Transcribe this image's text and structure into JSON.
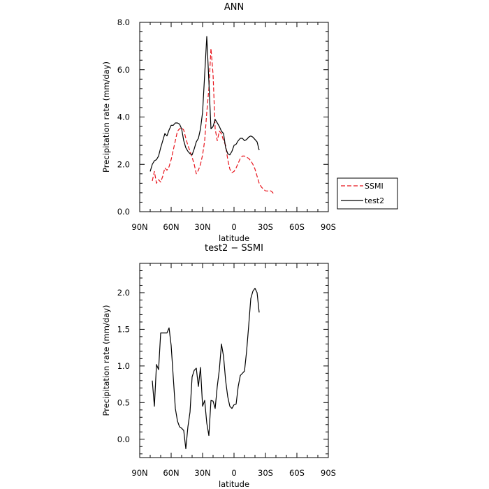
{
  "chart_data": [
    {
      "type": "line",
      "title": "ANN",
      "xlabel": "latitude",
      "ylabel": "Precipitation rate (mm/day)",
      "xlim": [
        90,
        -90
      ],
      "ylim": [
        0,
        8
      ],
      "x_ticks": [
        90,
        60,
        30,
        0,
        -30,
        -60,
        -90
      ],
      "x_tick_labels": [
        "90N",
        "60N",
        "30N",
        "0",
        "30S",
        "60S",
        "90S"
      ],
      "y_ticks": [
        0,
        2,
        4,
        6,
        8
      ],
      "y_tick_labels": [
        "0.0",
        "2.0",
        "4.0",
        "6.0",
        "8.0"
      ],
      "legend_position": "right",
      "series": [
        {
          "name": "SSMI",
          "color": "#e8141c",
          "dash": "dashed",
          "points": [
            [
              78,
              1.3
            ],
            [
              76,
              1.7
            ],
            [
              74,
              1.2
            ],
            [
              72,
              1.35
            ],
            [
              70,
              1.25
            ],
            [
              68,
              1.5
            ],
            [
              66,
              1.85
            ],
            [
              64,
              1.75
            ],
            [
              62,
              1.9
            ],
            [
              60,
              2.2
            ],
            [
              58,
              2.6
            ],
            [
              56,
              3.0
            ],
            [
              54,
              3.4
            ],
            [
              52,
              3.5
            ],
            [
              50,
              3.55
            ],
            [
              48,
              3.45
            ],
            [
              46,
              3.1
            ],
            [
              44,
              2.8
            ],
            [
              42,
              2.55
            ],
            [
              40,
              2.3
            ],
            [
              38,
              2.0
            ],
            [
              36,
              1.6
            ],
            [
              34,
              1.75
            ],
            [
              32,
              2.0
            ],
            [
              30,
              2.4
            ],
            [
              28,
              3.0
            ],
            [
              26,
              4.2
            ],
            [
              24,
              5.2
            ],
            [
              22,
              6.9
            ],
            [
              20,
              5.8
            ],
            [
              18,
              3.5
            ],
            [
              16,
              3.0
            ],
            [
              14,
              3.4
            ],
            [
              12,
              3.3
            ],
            [
              10,
              3.0
            ],
            [
              8,
              2.8
            ],
            [
              6,
              2.2
            ],
            [
              4,
              1.8
            ],
            [
              2,
              1.65
            ],
            [
              0,
              1.7
            ],
            [
              -2,
              1.85
            ],
            [
              -4,
              2.05
            ],
            [
              -6,
              2.25
            ],
            [
              -8,
              2.35
            ],
            [
              -10,
              2.35
            ],
            [
              -12,
              2.3
            ],
            [
              -14,
              2.25
            ],
            [
              -16,
              2.15
            ],
            [
              -18,
              2.0
            ],
            [
              -20,
              1.8
            ],
            [
              -22,
              1.5
            ],
            [
              -24,
              1.2
            ],
            [
              -26,
              1.05
            ],
            [
              -28,
              0.95
            ],
            [
              -30,
              0.88
            ],
            [
              -32,
              0.87
            ],
            [
              -34,
              0.9
            ],
            [
              -36,
              0.85
            ],
            [
              -38,
              0.75
            ]
          ]
        },
        {
          "name": "test2",
          "color": "#000000",
          "dash": "solid",
          "points": [
            [
              80,
              1.7
            ],
            [
              78,
              2.0
            ],
            [
              76,
              2.15
            ],
            [
              74,
              2.2
            ],
            [
              72,
              2.35
            ],
            [
              70,
              2.7
            ],
            [
              68,
              3.0
            ],
            [
              66,
              3.3
            ],
            [
              64,
              3.2
            ],
            [
              62,
              3.45
            ],
            [
              60,
              3.65
            ],
            [
              58,
              3.65
            ],
            [
              56,
              3.75
            ],
            [
              54,
              3.75
            ],
            [
              52,
              3.7
            ],
            [
              50,
              3.5
            ],
            [
              48,
              3.0
            ],
            [
              46,
              2.7
            ],
            [
              44,
              2.55
            ],
            [
              42,
              2.45
            ],
            [
              40,
              2.4
            ],
            [
              38,
              2.65
            ],
            [
              36,
              2.95
            ],
            [
              34,
              3.1
            ],
            [
              32,
              3.5
            ],
            [
              30,
              4.2
            ],
            [
              28,
              5.8
            ],
            [
              26,
              7.4
            ],
            [
              24,
              5.5
            ],
            [
              22,
              3.5
            ],
            [
              20,
              3.6
            ],
            [
              18,
              3.9
            ],
            [
              16,
              3.75
            ],
            [
              14,
              3.6
            ],
            [
              12,
              3.4
            ],
            [
              10,
              3.3
            ],
            [
              8,
              2.7
            ],
            [
              6,
              2.45
            ],
            [
              4,
              2.4
            ],
            [
              2,
              2.55
            ],
            [
              0,
              2.8
            ],
            [
              -2,
              2.85
            ],
            [
              -4,
              3.0
            ],
            [
              -6,
              3.1
            ],
            [
              -8,
              3.1
            ],
            [
              -10,
              3.0
            ],
            [
              -12,
              3.05
            ],
            [
              -14,
              3.15
            ],
            [
              -16,
              3.2
            ],
            [
              -18,
              3.15
            ],
            [
              -20,
              3.05
            ],
            [
              -22,
              2.95
            ],
            [
              -24,
              2.6
            ]
          ]
        }
      ]
    },
    {
      "type": "line",
      "title": "test2 − SSMI",
      "xlabel": "latitude",
      "ylabel": "Precipitation rate (mm/day)",
      "xlim": [
        90,
        -90
      ],
      "ylim": [
        -0.25,
        2.4
      ],
      "x_ticks": [
        90,
        60,
        30,
        0,
        -30,
        -60,
        -90
      ],
      "x_tick_labels": [
        "90N",
        "60N",
        "30N",
        "0",
        "30S",
        "60S",
        "90S"
      ],
      "y_ticks": [
        0,
        0.5,
        1,
        1.5,
        2
      ],
      "y_tick_labels": [
        "0.0",
        "0.5",
        "1.0",
        "1.5",
        "2.0"
      ],
      "series": [
        {
          "color": "#000000",
          "dash": "solid",
          "points": [
            [
              78,
              0.8
            ],
            [
              76,
              0.45
            ],
            [
              74,
              1.02
            ],
            [
              72,
              0.95
            ],
            [
              70,
              1.45
            ],
            [
              68,
              1.45
            ],
            [
              66,
              1.45
            ],
            [
              64,
              1.45
            ],
            [
              62,
              1.52
            ],
            [
              60,
              1.28
            ],
            [
              58,
              0.85
            ],
            [
              56,
              0.42
            ],
            [
              54,
              0.25
            ],
            [
              52,
              0.17
            ],
            [
              50,
              0.15
            ],
            [
              48,
              0.12
            ],
            [
              46,
              -0.13
            ],
            [
              44,
              0.17
            ],
            [
              42,
              0.37
            ],
            [
              40,
              0.85
            ],
            [
              38,
              0.94
            ],
            [
              36,
              0.97
            ],
            [
              34,
              0.72
            ],
            [
              32,
              0.98
            ],
            [
              30,
              0.45
            ],
            [
              28,
              0.53
            ],
            [
              26,
              0.22
            ],
            [
              24,
              0.05
            ],
            [
              22,
              0.53
            ],
            [
              20,
              0.52
            ],
            [
              18,
              0.42
            ],
            [
              16,
              0.72
            ],
            [
              14,
              0.95
            ],
            [
              12,
              1.3
            ],
            [
              10,
              1.13
            ],
            [
              8,
              0.8
            ],
            [
              6,
              0.58
            ],
            [
              4,
              0.45
            ],
            [
              2,
              0.42
            ],
            [
              0,
              0.47
            ],
            [
              -2,
              0.48
            ],
            [
              -4,
              0.72
            ],
            [
              -6,
              0.87
            ],
            [
              -8,
              0.9
            ],
            [
              -10,
              0.93
            ],
            [
              -12,
              1.2
            ],
            [
              -14,
              1.55
            ],
            [
              -16,
              1.92
            ],
            [
              -18,
              2.02
            ],
            [
              -20,
              2.06
            ],
            [
              -22,
              2.0
            ],
            [
              -24,
              1.73
            ]
          ]
        }
      ]
    }
  ]
}
